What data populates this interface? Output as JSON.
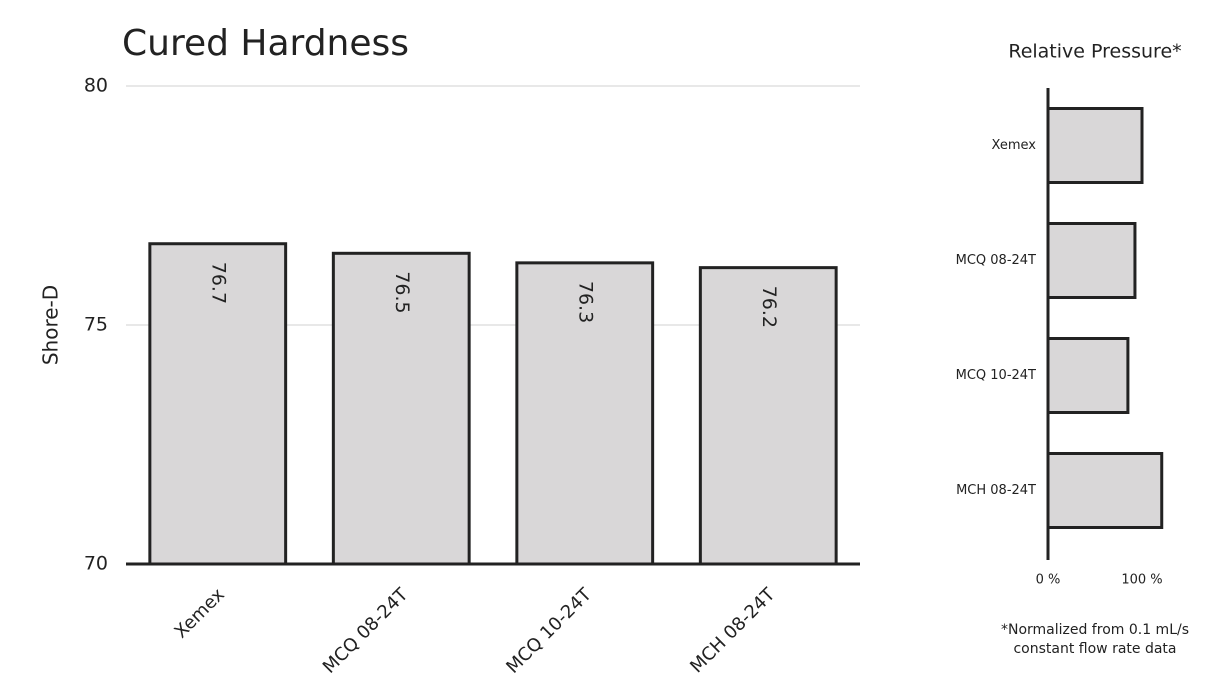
{
  "chart_data": [
    {
      "type": "bar",
      "title": "Cured Hardness",
      "y_label": "Shore-D",
      "categories": [
        "Xemex",
        "MCQ 08-24T",
        "MCQ 10-24T",
        "MCH 08-24T"
      ],
      "values": [
        76.7,
        76.5,
        76.3,
        76.2
      ],
      "color": "#d9d7d8",
      "show_value_labels": true,
      "ylim": [
        70,
        80
      ],
      "yticks": [
        70,
        75,
        80
      ],
      "grid": true
    },
    {
      "type": "hbar",
      "title": "Relative Pressure*",
      "categories": [
        "Xemex",
        "MCQ 08-24T",
        "MCQ 10-24T",
        "MCH 08-24T"
      ],
      "values": [
        100,
        92.5,
        85,
        121
      ],
      "color": "#d9d7d8",
      "xlim": [
        0,
        125
      ],
      "xticks": [
        {
          "value": 0,
          "label": "0 %"
        },
        {
          "value": 100,
          "label": "100 %"
        }
      ],
      "annotations": [
        "*Normalized from 0.1 mL/s",
        "constant flow rate data"
      ]
    }
  ]
}
